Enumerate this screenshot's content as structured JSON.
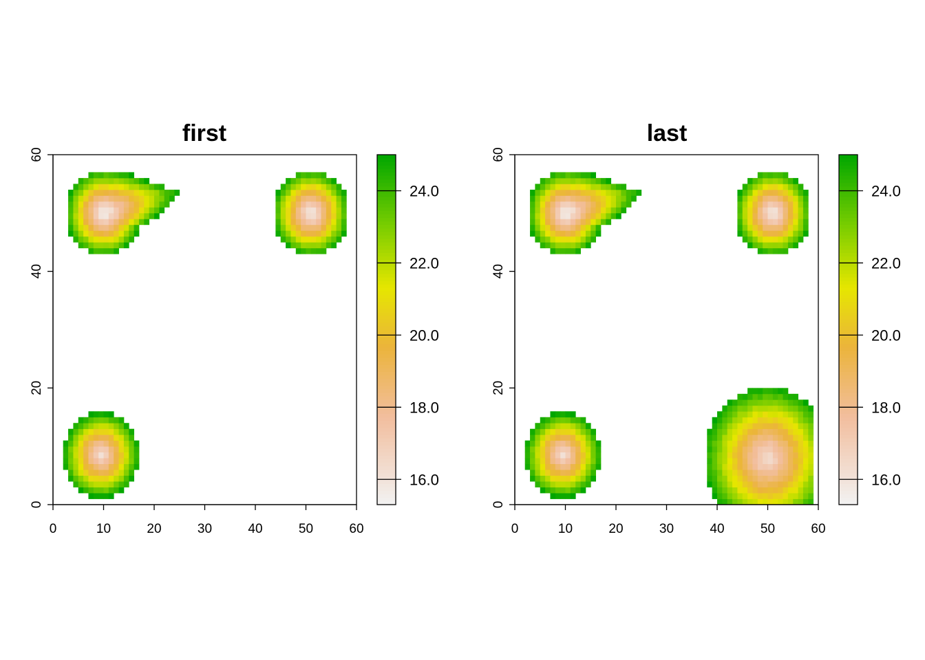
{
  "chart_data": [
    {
      "type": "heatmap",
      "title": "first",
      "xlabel": "",
      "ylabel": "",
      "xlim": [
        0,
        60
      ],
      "ylim": [
        0,
        60
      ],
      "x_ticks": [
        "0",
        "10",
        "20",
        "30",
        "40",
        "50",
        "60"
      ],
      "y_ticks": [
        "0",
        "20",
        "40",
        "60"
      ],
      "value_range": [
        15.3,
        25.0
      ],
      "legend": {
        "position": "right",
        "ticks": [
          "16.0",
          "18.0",
          "20.0",
          "22.0",
          "24.0"
        ]
      },
      "blobs": [
        {
          "center": [
            10,
            50
          ],
          "radius": 7.5,
          "min_value": 15.5,
          "note": "elongated toward east, tip near x=26.5 at y=53.5"
        },
        {
          "center": [
            51,
            50
          ],
          "radius": 7.5,
          "min_value": 15.6
        },
        {
          "center": [
            9.5,
            8.5
          ],
          "radius": 7.5,
          "min_value": 16.2
        }
      ]
    },
    {
      "type": "heatmap",
      "title": "last",
      "xlabel": "",
      "ylabel": "",
      "xlim": [
        0,
        60
      ],
      "ylim": [
        0,
        60
      ],
      "x_ticks": [
        "0",
        "10",
        "20",
        "30",
        "40",
        "50",
        "60"
      ],
      "y_ticks": [
        "0",
        "20",
        "40",
        "60"
      ],
      "value_range": [
        15.3,
        25.0
      ],
      "legend": {
        "position": "right",
        "ticks": [
          "16.0",
          "18.0",
          "20.0",
          "22.0",
          "24.0"
        ]
      },
      "blobs": [
        {
          "center": [
            10,
            50
          ],
          "radius": 7.5,
          "min_value": 15.5,
          "note": "elongated toward east, tip near x=26.5 at y=53.5"
        },
        {
          "center": [
            51,
            50
          ],
          "radius": 7.5,
          "min_value": 15.6
        },
        {
          "center": [
            9.5,
            8.5
          ],
          "radius": 7.5,
          "min_value": 16.2
        },
        {
          "center": [
            50,
            8
          ],
          "radius": 12.5,
          "min_value": 16.3,
          "note": "large patch clipped at x=59 and y=1"
        }
      ]
    }
  ],
  "colors": {
    "low": "#f2f2f2",
    "mid_low": "#f2be9e",
    "mid": "#e6e600",
    "high": "#00a600"
  }
}
